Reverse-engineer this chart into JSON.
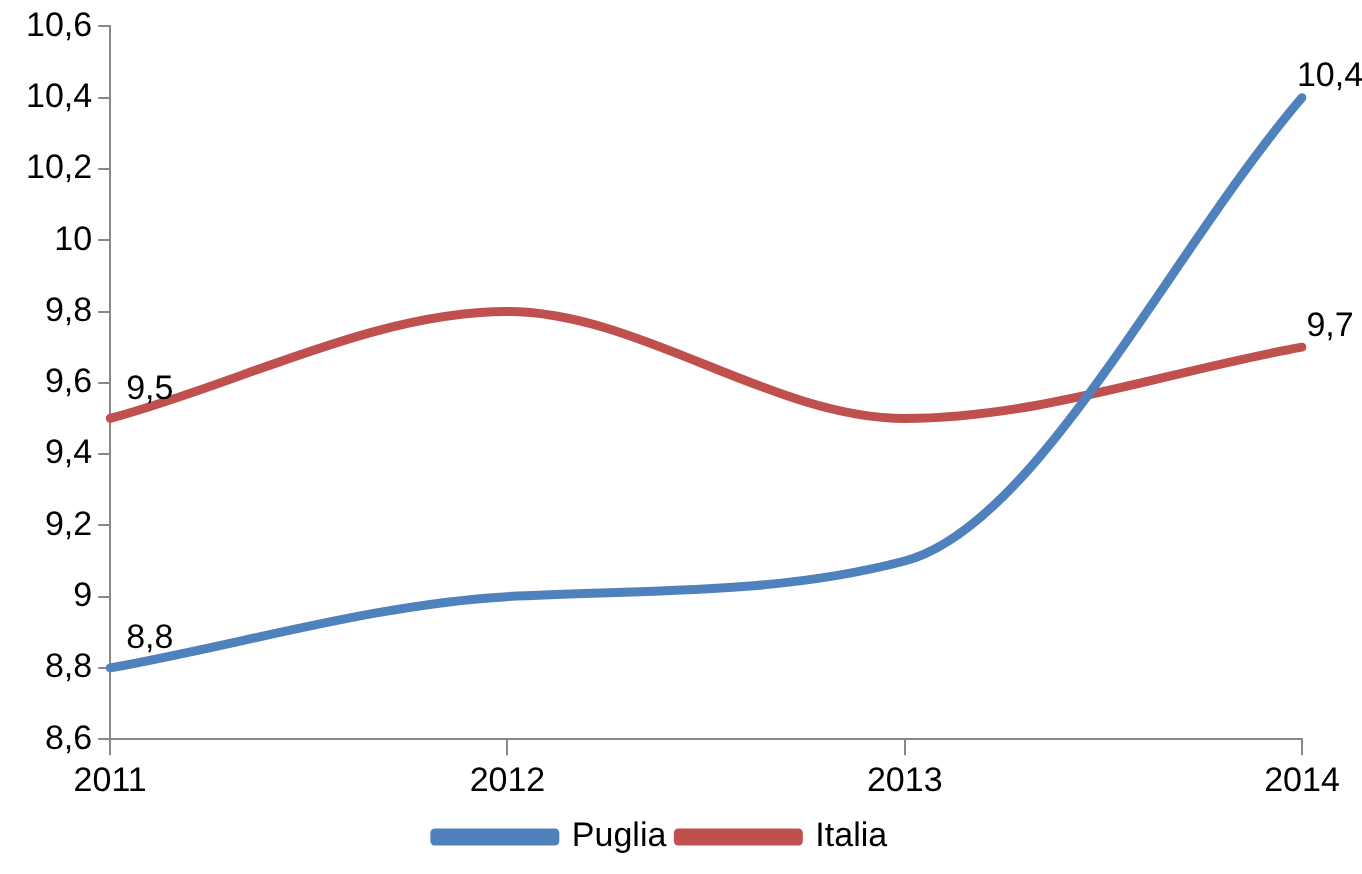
{
  "chart_data": {
    "type": "line",
    "categories": [
      "2011",
      "2012",
      "2013",
      "2014"
    ],
    "series": [
      {
        "name": "Puglia",
        "color": "#4f81bd",
        "values": [
          8.8,
          9.0,
          9.1,
          10.4
        ],
        "value_labels": [
          "8,8",
          null,
          null,
          "10,4"
        ]
      },
      {
        "name": "Italia",
        "color": "#c0504d",
        "values": [
          9.5,
          9.8,
          9.5,
          9.7
        ],
        "value_labels": [
          "9,5",
          null,
          null,
          "9,7"
        ]
      }
    ],
    "ylim": [
      8.6,
      10.6
    ],
    "yticks": [
      {
        "value": 8.6,
        "label": "8,6"
      },
      {
        "value": 8.8,
        "label": "8,8"
      },
      {
        "value": 9,
        "label": "9"
      },
      {
        "value": 9.2,
        "label": "9,2"
      },
      {
        "value": 9.4,
        "label": "9,4"
      },
      {
        "value": 9.6,
        "label": "9,6"
      },
      {
        "value": 9.8,
        "label": "9,8"
      },
      {
        "value": 10,
        "label": "10"
      },
      {
        "value": 10.2,
        "label": "10,2"
      },
      {
        "value": 10.4,
        "label": "10,4"
      },
      {
        "value": 10.6,
        "label": "10,6"
      }
    ],
    "grid": false,
    "legend": "bottom",
    "marker": "none",
    "line_style": "solid"
  }
}
